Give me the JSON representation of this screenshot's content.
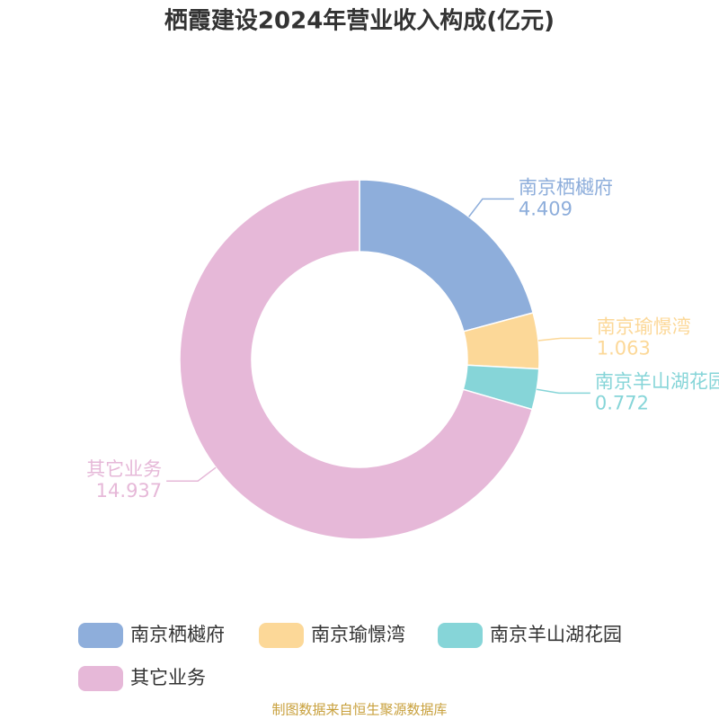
{
  "chart_data": {
    "type": "donut",
    "title": "栖霞建设2024年营业收入构成(亿元)",
    "categories": [
      "南京栖樾府",
      "南京瑜憬湾",
      "南京羊山湖花园",
      "其它业务"
    ],
    "values": [
      4.409,
      1.063,
      0.772,
      14.937
    ],
    "colors": [
      "#8eaedb",
      "#fcd898",
      "#86d5d8",
      "#e6b8d8"
    ],
    "source": "制图数据来自恒生聚源数据库"
  }
}
